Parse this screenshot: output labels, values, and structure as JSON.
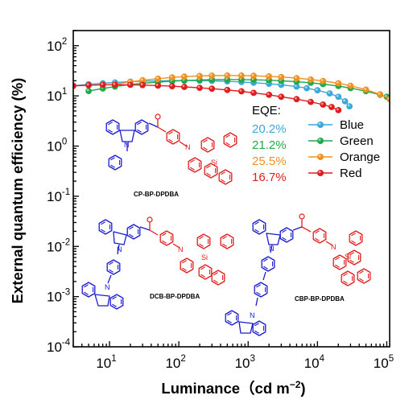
{
  "chart_data": {
    "type": "line",
    "xlabel": "Luminance（cd m",
    "xlabel_sup": "−2",
    "xlabel_suffix": ")",
    "ylabel": "External quantum efficiency (%)",
    "x_scale": "log",
    "y_scale": "log",
    "xlim": [
      3,
      110000
    ],
    "ylim": [
      0.0001,
      200
    ],
    "x_tick_labels": [
      {
        "v": 10,
        "base": "10",
        "exp": "1"
      },
      {
        "v": 100,
        "base": "10",
        "exp": "2"
      },
      {
        "v": 1000,
        "base": "10",
        "exp": "3"
      },
      {
        "v": 10000,
        "base": "10",
        "exp": "4"
      },
      {
        "v": 100000,
        "base": "10",
        "exp": "5"
      }
    ],
    "y_tick_labels": [
      {
        "v": 0.0001,
        "base": "10",
        "exp": "-4"
      },
      {
        "v": 0.001,
        "base": "10",
        "exp": "-3"
      },
      {
        "v": 0.01,
        "base": "10",
        "exp": "-2"
      },
      {
        "v": 0.1,
        "base": "10",
        "exp": "-1"
      },
      {
        "v": 1,
        "base": "10",
        "exp": "0"
      },
      {
        "v": 10,
        "base": "10",
        "exp": "1"
      },
      {
        "v": 100,
        "base": "10",
        "exp": "2"
      }
    ],
    "grid": false,
    "legend_position": "right, mid-height",
    "eqe_heading": "EQE:",
    "series": [
      {
        "name": "Blue",
        "eqe_label": "20.2%",
        "color": "#3aa8d8",
        "x": [
          3,
          5,
          8,
          12,
          20,
          30,
          50,
          80,
          120,
          200,
          300,
          500,
          800,
          1200,
          2000,
          3000,
          5000,
          7000,
          10000,
          15000,
          20000,
          25000,
          29000
        ],
        "y": [
          16.0,
          17.0,
          17.8,
          18.5,
          19.2,
          19.6,
          19.9,
          20.1,
          20.2,
          20.1,
          19.9,
          19.5,
          18.9,
          18.3,
          17.4,
          16.6,
          15.3,
          14.2,
          12.9,
          11.2,
          9.6,
          7.8,
          6.2
        ]
      },
      {
        "name": "Green",
        "eqe_label": "21.2%",
        "color": "#22a84a",
        "x": [
          5,
          8,
          12,
          20,
          30,
          50,
          80,
          120,
          200,
          300,
          500,
          800,
          1200,
          2000,
          3000,
          5000,
          8000,
          12000,
          20000,
          30000,
          50000,
          80000,
          100000
        ],
        "y": [
          12.5,
          14.0,
          15.3,
          16.8,
          17.8,
          18.8,
          19.6,
          20.2,
          20.7,
          21.0,
          21.2,
          21.1,
          20.9,
          20.5,
          20.0,
          19.2,
          18.2,
          17.2,
          15.7,
          14.3,
          12.4,
          10.5,
          9.6
        ]
      },
      {
        "name": "Orange",
        "eqe_label": "25.5%",
        "color": "#f0901e",
        "x": [
          12,
          20,
          30,
          50,
          80,
          120,
          200,
          300,
          500,
          800,
          1200,
          2000,
          3000,
          5000,
          8000,
          12000,
          20000,
          30000,
          50000,
          80000,
          110000
        ],
        "y": [
          17.0,
          19.0,
          20.5,
          22.0,
          23.3,
          24.2,
          24.9,
          25.3,
          25.5,
          25.4,
          25.1,
          24.5,
          23.8,
          22.6,
          21.2,
          19.8,
          17.8,
          15.9,
          13.3,
          10.7,
          8.6
        ]
      },
      {
        "name": "Red",
        "eqe_label": "16.7%",
        "color": "#e01c1c",
        "x": [
          3,
          5,
          8,
          12,
          20,
          30,
          50,
          80,
          120,
          200,
          300,
          500,
          800,
          1200,
          2000,
          3000,
          5000,
          8000,
          12000,
          16000,
          20000
        ],
        "y": [
          15.8,
          16.3,
          16.6,
          16.7,
          16.6,
          16.4,
          16.0,
          15.6,
          15.1,
          14.5,
          13.9,
          13.1,
          12.3,
          11.5,
          10.5,
          9.6,
          8.6,
          7.6,
          6.7,
          6.0,
          5.2
        ]
      }
    ],
    "annotations": [
      {
        "label": "CP-BP-DPDBA"
      },
      {
        "label": "DCB-BP-DPDBA"
      },
      {
        "label": "CBP-BP-DPDBA"
      }
    ]
  },
  "structure_atoms": {
    "nitrogen": "N",
    "silicon": "Si"
  },
  "colors": {
    "donor": "#1a1ad0",
    "acceptor": "#e01c1c",
    "axis": "#000000"
  }
}
